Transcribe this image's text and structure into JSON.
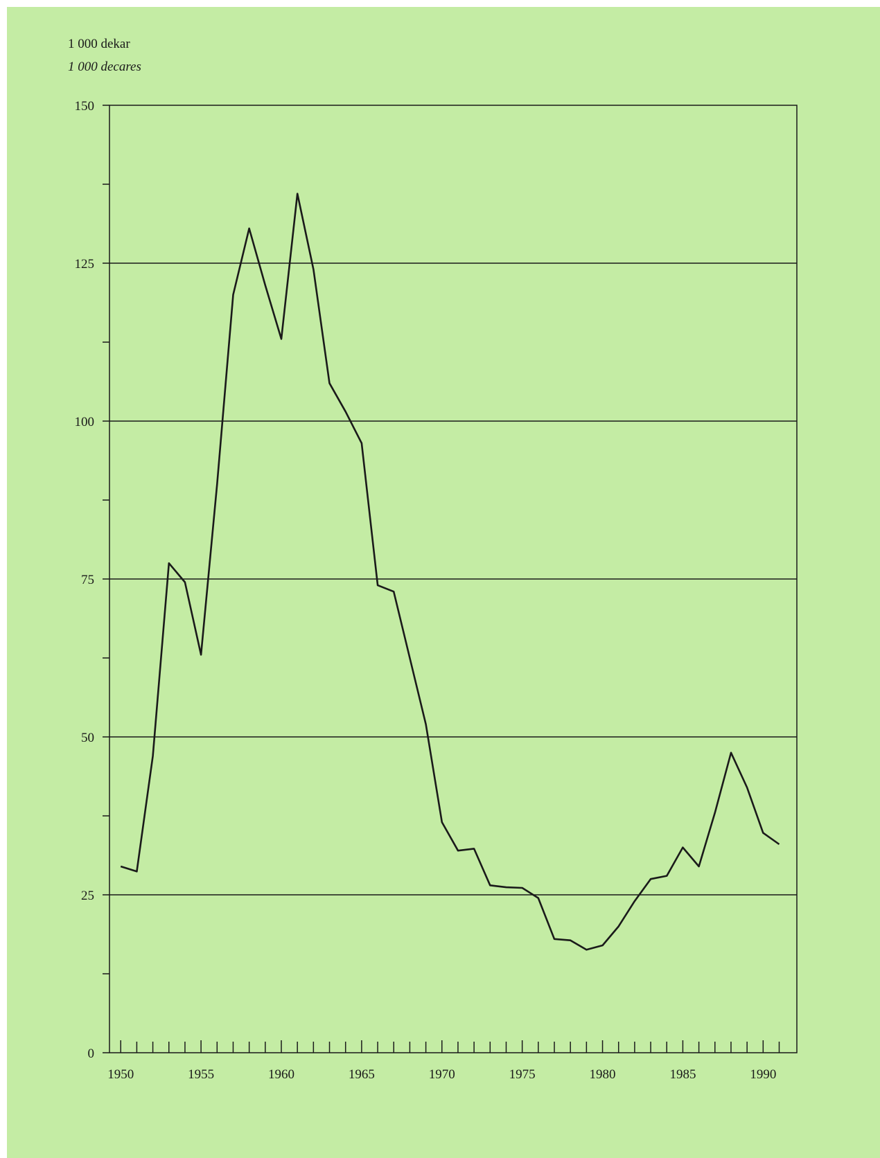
{
  "colors": {
    "background": "#c4eca4",
    "line": "#1a1a1a"
  },
  "chart_data": {
    "type": "line",
    "unit_label_no": "1 000 dekar",
    "unit_label_en": "1 000 decares",
    "title": "",
    "xlabel": "",
    "ylabel": "",
    "xlim": [
      1949.3,
      1992.1
    ],
    "ylim": [
      0,
      150
    ],
    "grid": "horizontal at 25, 50, 75, 100, 125",
    "y_tick_labels": [
      "0",
      "25",
      "50",
      "75",
      "100",
      "125",
      "150"
    ],
    "y_tick_values": [
      0,
      25,
      50,
      75,
      100,
      125,
      150
    ],
    "y_minor_ticks": [
      12.5,
      37.5,
      62.5,
      87.5,
      112.5,
      137.5
    ],
    "x_tick_labels": [
      "1950",
      "1955",
      "1960",
      "1965",
      "1970",
      "1975",
      "1980",
      "1985",
      "1990"
    ],
    "x_tick_values": [
      1950,
      1955,
      1960,
      1965,
      1970,
      1975,
      1980,
      1985,
      1990
    ],
    "x": [
      1950,
      1951,
      1952,
      1953,
      1954,
      1955,
      1956,
      1957,
      1958,
      1959,
      1960,
      1961,
      1962,
      1963,
      1964,
      1965,
      1966,
      1967,
      1968,
      1969,
      1970,
      1971,
      1972,
      1973,
      1974,
      1975,
      1976,
      1977,
      1978,
      1979,
      1980,
      1981,
      1982,
      1983,
      1984,
      1985,
      1986,
      1987,
      1988,
      1989,
      1990,
      1991
    ],
    "series": [
      {
        "values": [
          29.5,
          28.7,
          47,
          77.5,
          74.5,
          63,
          90,
          120,
          130.5,
          121.5,
          113,
          136,
          124,
          106,
          101.5,
          96.5,
          74,
          73,
          62.5,
          52,
          36.5,
          32,
          32.3,
          26.5,
          26.2,
          26.1,
          24.5,
          18,
          17.8,
          16.3,
          17,
          20,
          24,
          27.5,
          28,
          32.5,
          29.5,
          38,
          47.5,
          42,
          34.8,
          33
        ]
      }
    ]
  }
}
